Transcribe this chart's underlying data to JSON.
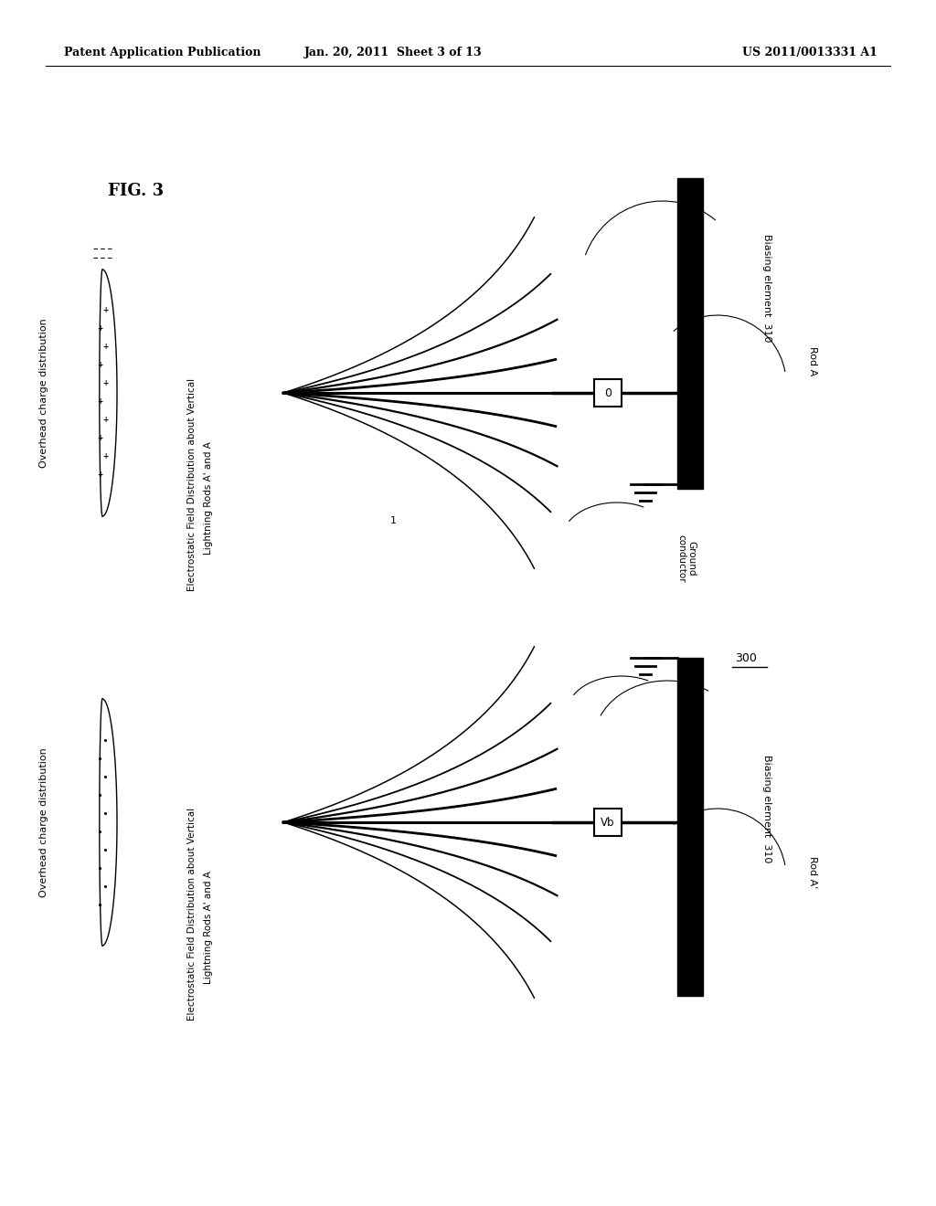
{
  "header_left": "Patent Application Publication",
  "header_mid": "Jan. 20, 2011  Sheet 3 of 13",
  "header_right": "US 2011/0013331 A1",
  "fig_label": "FIG. 3",
  "background_color": "#ffffff",
  "text_color": "#000000",
  "label_overhead": "Overhead charge distribution",
  "label_field_line1": "Electrostatic Field Distribution about Vertical",
  "label_field_line2": "Lightning Rods A' and A",
  "label_ground": "Ground\nconductor",
  "label_biasing_top": "Biasing element  310",
  "label_rod_top": "Rod A",
  "label_biasing_bot": "Biasing element  310",
  "label_rod_bot": "Rod A'",
  "label_300": "300",
  "label_0": "0",
  "label_vb": "Vb"
}
